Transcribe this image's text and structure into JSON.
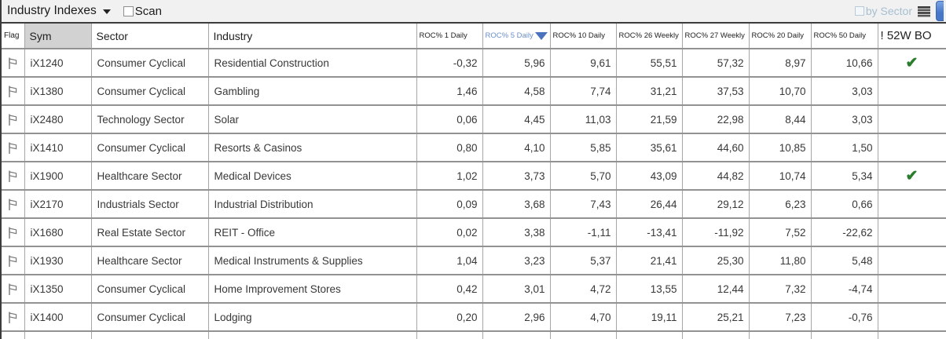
{
  "titlebar": {
    "dropdown_label": "Industry Indexes",
    "scan_label": "Scan",
    "scan_checked": false,
    "by_sector_label": "by Sector",
    "by_sector_checked": false
  },
  "table": {
    "columns": [
      {
        "key": "flag",
        "label": "Flag"
      },
      {
        "key": "sym",
        "label": "Sym"
      },
      {
        "key": "sector",
        "label": "Sector"
      },
      {
        "key": "industry",
        "label": "Industry"
      },
      {
        "key": "roc1",
        "label": "ROC% 1 Daily"
      },
      {
        "key": "roc5",
        "label": "ROC% 5 Daily",
        "sorted": "desc"
      },
      {
        "key": "roc10",
        "label": "ROC% 10 Daily"
      },
      {
        "key": "roc26w",
        "label": "ROC% 26 Weekly"
      },
      {
        "key": "roc27w",
        "label": "ROC% 27 Weekly"
      },
      {
        "key": "roc20",
        "label": "ROC% 20 Daily"
      },
      {
        "key": "roc50",
        "label": "ROC% 50 Daily"
      },
      {
        "key": "bo52w",
        "label": "! 52W BO"
      }
    ],
    "sorted_column": "ROC% 5 Daily",
    "check_glyph": "✔",
    "rows": [
      {
        "sym": "iX1240",
        "sector": "Consumer Cyclical",
        "industry": "Residential Construction",
        "roc1": "-0,32",
        "roc5": "5,96",
        "roc10": "9,61",
        "roc26w": "55,51",
        "roc27w": "57,32",
        "roc20": "8,97",
        "roc50": "10,66",
        "bo52w": true
      },
      {
        "sym": "iX1380",
        "sector": "Consumer Cyclical",
        "industry": "Gambling",
        "roc1": "1,46",
        "roc5": "4,58",
        "roc10": "7,74",
        "roc26w": "31,21",
        "roc27w": "37,53",
        "roc20": "10,70",
        "roc50": "3,03",
        "bo52w": false
      },
      {
        "sym": "iX2480",
        "sector": "Technology Sector",
        "industry": "Solar",
        "roc1": "0,06",
        "roc5": "4,45",
        "roc10": "11,03",
        "roc26w": "21,59",
        "roc27w": "22,98",
        "roc20": "8,44",
        "roc50": "3,03",
        "bo52w": false
      },
      {
        "sym": "iX1410",
        "sector": "Consumer Cyclical",
        "industry": "Resorts & Casinos",
        "roc1": "0,80",
        "roc5": "4,10",
        "roc10": "5,85",
        "roc26w": "35,61",
        "roc27w": "44,60",
        "roc20": "10,85",
        "roc50": "1,50",
        "bo52w": false
      },
      {
        "sym": "iX1900",
        "sector": "Healthcare Sector",
        "industry": "Medical Devices",
        "roc1": "1,02",
        "roc5": "3,73",
        "roc10": "5,70",
        "roc26w": "43,09",
        "roc27w": "44,82",
        "roc20": "10,74",
        "roc50": "5,34",
        "bo52w": true
      },
      {
        "sym": "iX2170",
        "sector": "Industrials Sector",
        "industry": "Industrial Distribution",
        "roc1": "0,09",
        "roc5": "3,68",
        "roc10": "7,43",
        "roc26w": "26,44",
        "roc27w": "29,12",
        "roc20": "6,23",
        "roc50": "0,66",
        "bo52w": false
      },
      {
        "sym": "iX1680",
        "sector": "Real Estate Sector",
        "industry": "REIT - Office",
        "roc1": "0,02",
        "roc5": "3,38",
        "roc10": "-1,11",
        "roc26w": "-13,41",
        "roc27w": "-11,92",
        "roc20": "7,52",
        "roc50": "-22,62",
        "bo52w": false
      },
      {
        "sym": "iX1930",
        "sector": "Healthcare Sector",
        "industry": "Medical Instruments & Supplies",
        "roc1": "1,04",
        "roc5": "3,23",
        "roc10": "5,37",
        "roc26w": "21,41",
        "roc27w": "25,30",
        "roc20": "11,80",
        "roc50": "5,48",
        "bo52w": false
      },
      {
        "sym": "iX1350",
        "sector": "Consumer Cyclical",
        "industry": "Home Improvement Stores",
        "roc1": "0,42",
        "roc5": "3,01",
        "roc10": "4,72",
        "roc26w": "13,55",
        "roc27w": "12,44",
        "roc20": "7,32",
        "roc50": "-4,74",
        "bo52w": false
      },
      {
        "sym": "iX1400",
        "sector": "Consumer Cyclical",
        "industry": "Lodging",
        "roc1": "0,20",
        "roc5": "2,96",
        "roc10": "4,70",
        "roc26w": "19,11",
        "roc27w": "25,21",
        "roc20": "7,23",
        "roc50": "-0,76",
        "bo52w": false
      }
    ]
  },
  "colors": {
    "window_border": "#3c3c3c",
    "sorted_blue": "#6b8fc9",
    "triangle_blue": "#4a72bd",
    "check_green": "#2b7c2b",
    "sym_header_bg": "#d2d2d2",
    "by_sector_blue": "#a6bfd2",
    "corner_button_blue": "#4576c8"
  }
}
